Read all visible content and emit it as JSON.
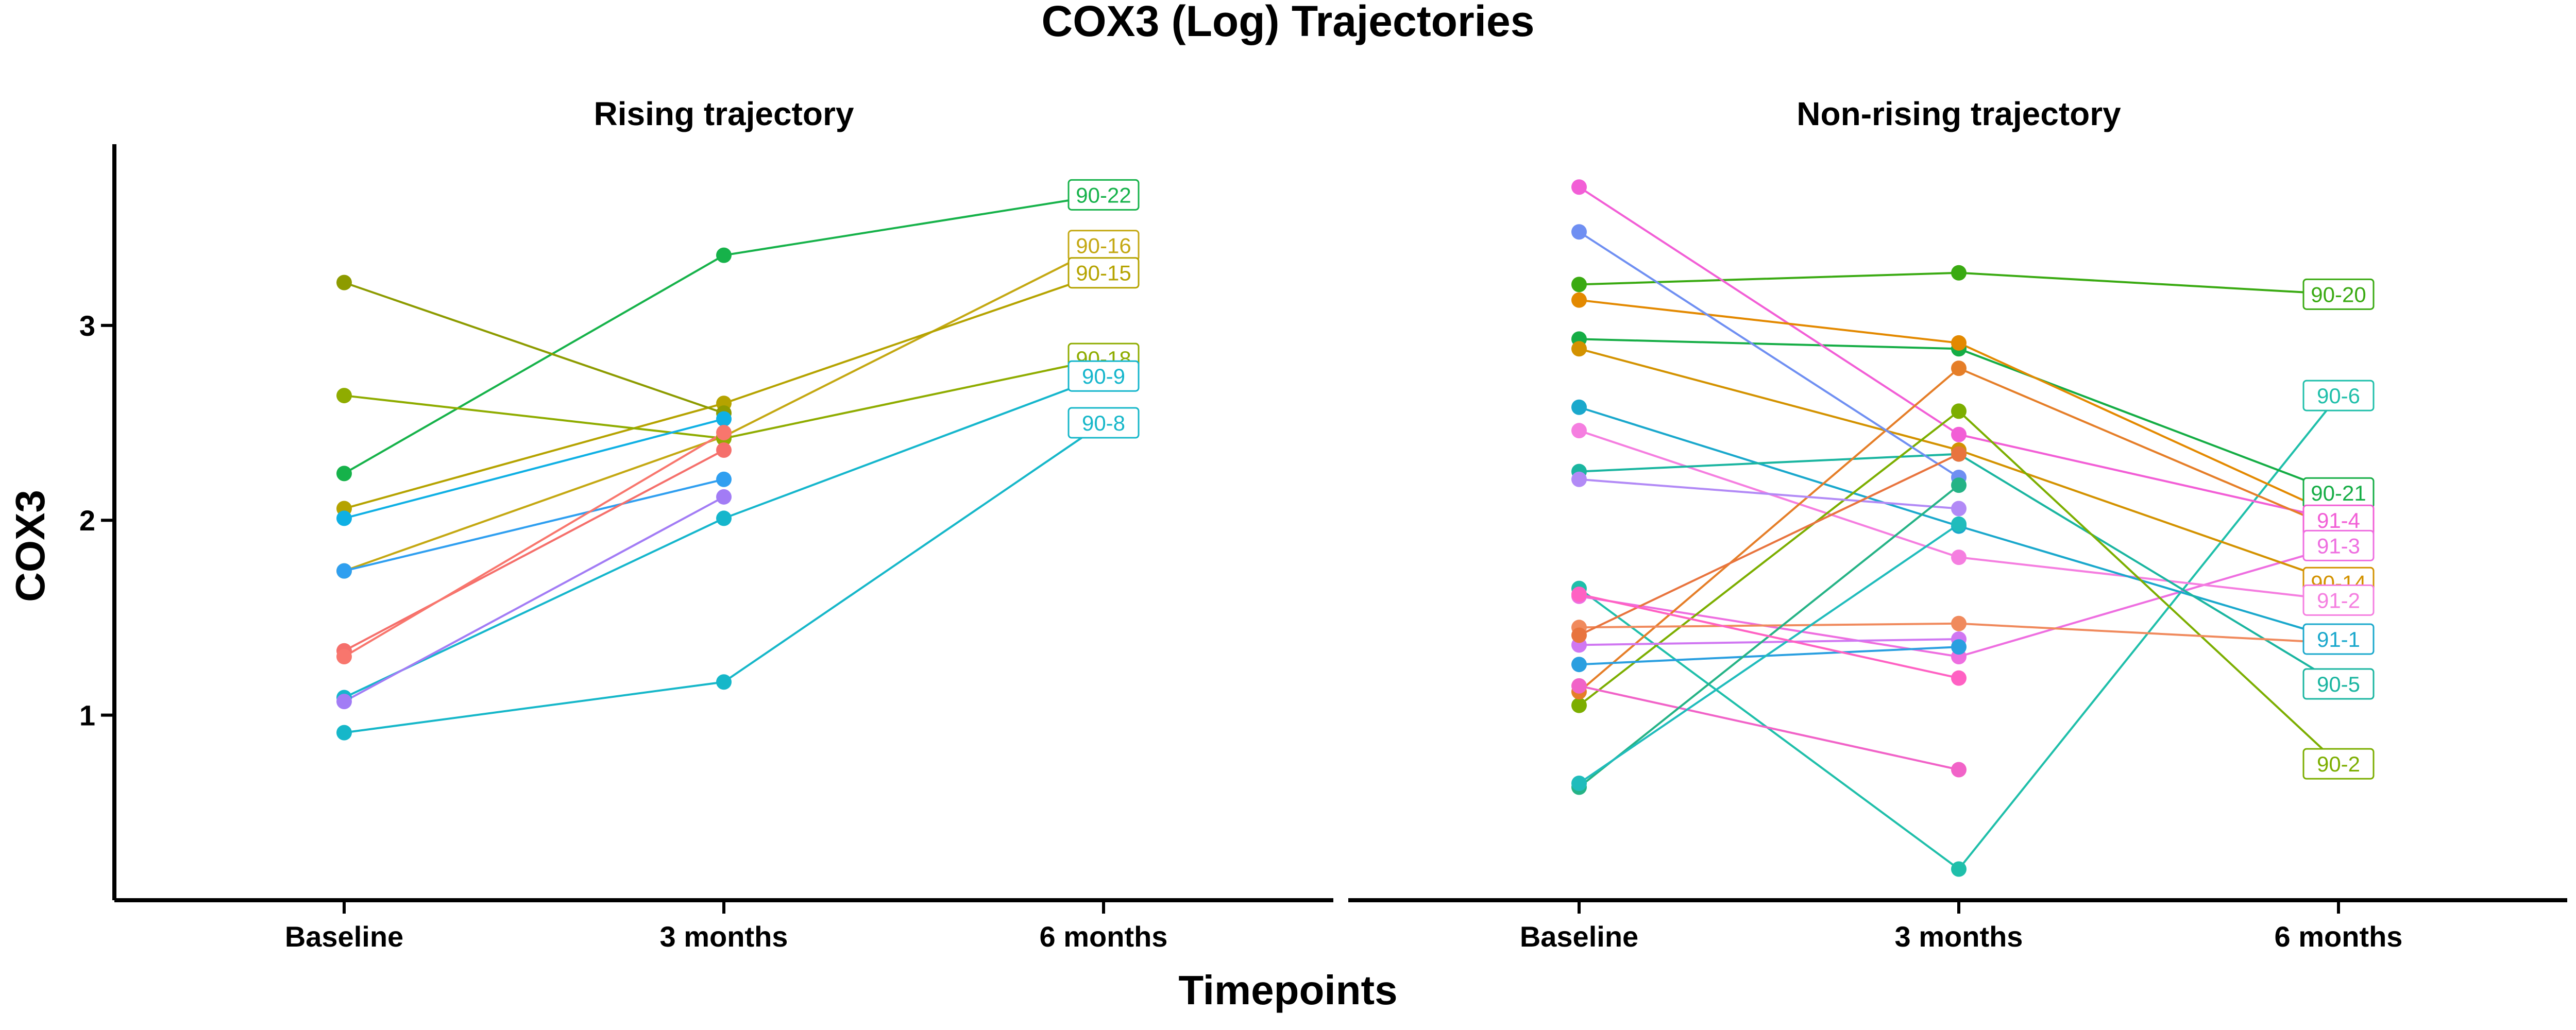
{
  "chart_data": {
    "type": "line",
    "title": "COX3 (Log) Trajectories",
    "xlabel": "Timepoints",
    "ylabel": "COX3",
    "categories": [
      "Baseline",
      "3 months",
      "6 months"
    ],
    "ylim": [
      0.05,
      3.93
    ],
    "yticks": [
      1,
      2,
      3
    ],
    "grid": false,
    "legend": "none",
    "panels": [
      {
        "title": "Rising trajectory",
        "series": [
          {
            "label": "90-22",
            "color": "#16b24a",
            "values": [
              2.24,
              3.36,
              3.67
            ]
          },
          {
            "label": "90-16",
            "color": "#c4a812",
            "values": [
              1.74,
              2.43,
              3.41
            ]
          },
          {
            "label": "90-15",
            "color": "#b5a300",
            "values": [
              2.06,
              2.6,
              3.27
            ]
          },
          {
            "label": "90-18",
            "color": "#8fac00",
            "values": [
              2.64,
              2.42,
              2.83
            ]
          },
          {
            "label": "90-9",
            "color": "#15b6cc",
            "values": [
              1.09,
              2.01,
              2.74
            ]
          },
          {
            "label": "90-8",
            "color": "#16b7c9",
            "values": [
              0.91,
              1.17,
              2.5
            ]
          },
          {
            "label": "",
            "color": "#8d9b00",
            "values": [
              3.22,
              2.55,
              null
            ]
          },
          {
            "label": "",
            "color": "#0fb0e4",
            "values": [
              2.01,
              2.52,
              null
            ]
          },
          {
            "label": "",
            "color": "#2f9ff0",
            "values": [
              1.74,
              2.21,
              null
            ]
          },
          {
            "label": "",
            "color": "#f56f6b",
            "values": [
              1.33,
              2.36,
              null
            ]
          },
          {
            "label": "",
            "color": "#f8766d",
            "values": [
              1.3,
              2.45,
              null
            ]
          },
          {
            "label": "",
            "color": "#a27cf5",
            "values": [
              1.07,
              2.12,
              null
            ]
          }
        ]
      },
      {
        "title": "Non-rising trajectory",
        "series": [
          {
            "label": "90-20",
            "color": "#3aaa12",
            "values": [
              3.21,
              3.27,
              3.16
            ]
          },
          {
            "label": "90-6",
            "color": "#1fbfaa",
            "values": [
              1.65,
              0.21,
              2.64
            ]
          },
          {
            "label": "90-21",
            "color": "#15ad45",
            "values": [
              2.93,
              2.88,
              2.14
            ]
          },
          {
            "label": "91-4",
            "color": "#f25ed6",
            "values": [
              3.71,
              2.44,
              2.0
            ]
          },
          {
            "label": "91-3",
            "color": "#ee6ee0",
            "values": [
              1.61,
              1.3,
              1.87
            ]
          },
          {
            "label": "90-14",
            "color": "#d39200",
            "values": [
              2.88,
              2.36,
              1.68
            ]
          },
          {
            "label": "91-2",
            "color": "#f57ee0",
            "values": [
              2.46,
              1.81,
              1.59
            ]
          },
          {
            "label": "91-1",
            "color": "#1aa8cc",
            "values": [
              2.58,
              1.97,
              1.39
            ]
          },
          {
            "label": "90-5",
            "color": "#1ab5a0",
            "values": [
              2.25,
              2.34,
              1.16
            ]
          },
          {
            "label": "90-2",
            "color": "#7cae00",
            "values": [
              1.05,
              2.56,
              0.75
            ]
          },
          {
            "label": "",
            "color": "#e38900",
            "values": [
              3.13,
              2.91,
              2.02
            ]
          },
          {
            "label": "",
            "color": "#e57e28",
            "values": [
              1.12,
              2.78,
              1.95
            ]
          },
          {
            "label": "",
            "color": "#f08a5d",
            "values": [
              1.45,
              1.47,
              1.37
            ]
          },
          {
            "label": "",
            "color": "#6f8ff2",
            "values": [
              3.48,
              2.22,
              null
            ]
          },
          {
            "label": "",
            "color": "#b28af6",
            "values": [
              2.21,
              2.06,
              null
            ]
          },
          {
            "label": "",
            "color": "#d077f2",
            "values": [
              1.36,
              1.39,
              null
            ]
          },
          {
            "label": "",
            "color": "#2a9fe0",
            "values": [
              1.26,
              1.35,
              null
            ]
          },
          {
            "label": "",
            "color": "#f163c8",
            "values": [
              1.15,
              0.72,
              null
            ]
          },
          {
            "label": "",
            "color": "#e8743e",
            "values": [
              1.41,
              2.34,
              null
            ]
          },
          {
            "label": "",
            "color": "#25b386",
            "values": [
              0.63,
              2.18,
              null
            ]
          },
          {
            "label": "",
            "color": "#20bcbc",
            "values": [
              0.65,
              1.98,
              null
            ]
          },
          {
            "label": "",
            "color": "#ff61c3",
            "values": [
              1.62,
              1.19,
              null
            ]
          }
        ]
      }
    ]
  }
}
